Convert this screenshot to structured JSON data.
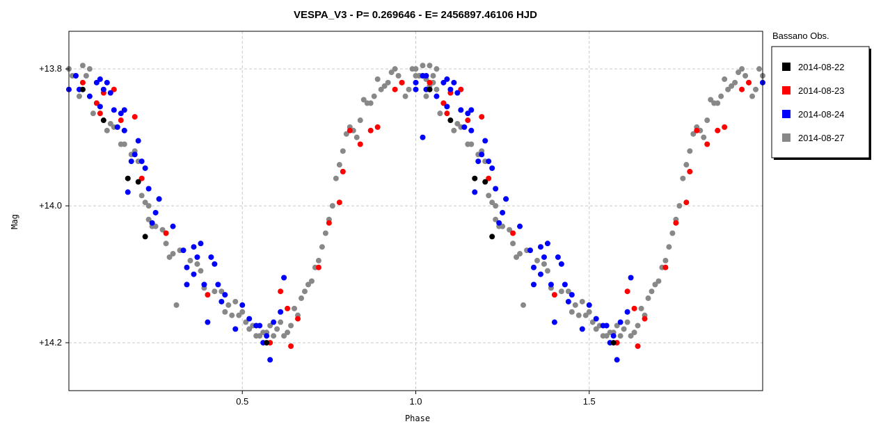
{
  "chart_data": {
    "type": "scatter",
    "title": "VESPA_V3  -  P= 0.269646  -  E= 2456897.46106 HJD",
    "xlabel": "Phase",
    "ylabel": "Mag",
    "xlim": [
      0.0,
      2.0
    ],
    "ylim": [
      14.27,
      13.745
    ],
    "y_inverted": true,
    "x_ticks": [
      0.5,
      1.0,
      1.5
    ],
    "x_tick_labels": [
      "0.5",
      "1.0",
      "1.5"
    ],
    "y_ticks": [
      13.8,
      14.0,
      14.2
    ],
    "y_tick_labels": [
      "+13.8",
      "+14.0",
      "+14.2"
    ],
    "grid": true,
    "legend_title": "Bassano Obs.",
    "legend_position": "right",
    "series": [
      {
        "name": "2014-08-22",
        "color": "#000000",
        "points": [
          [
            0.04,
            13.83
          ],
          [
            0.1,
            13.875
          ],
          [
            0.17,
            13.96
          ],
          [
            0.2,
            13.965
          ],
          [
            0.22,
            14.045
          ],
          [
            0.57,
            14.2
          ]
        ]
      },
      {
        "name": "2014-08-23",
        "color": "#ff0000",
        "points": [
          [
            0.04,
            13.82
          ],
          [
            0.08,
            13.85
          ],
          [
            0.09,
            13.865
          ],
          [
            0.1,
            13.835
          ],
          [
            0.13,
            13.83
          ],
          [
            0.15,
            13.875
          ],
          [
            0.19,
            13.87
          ],
          [
            0.21,
            13.96
          ],
          [
            0.28,
            14.04
          ],
          [
            0.4,
            14.13
          ],
          [
            0.58,
            14.2
          ],
          [
            0.61,
            14.125
          ],
          [
            0.63,
            14.15
          ],
          [
            0.64,
            14.205
          ],
          [
            0.66,
            14.165
          ],
          [
            0.72,
            14.09
          ],
          [
            0.75,
            14.025
          ],
          [
            0.78,
            13.995
          ],
          [
            0.79,
            13.95
          ],
          [
            0.81,
            13.89
          ],
          [
            0.84,
            13.91
          ],
          [
            0.87,
            13.89
          ],
          [
            0.89,
            13.885
          ],
          [
            0.94,
            13.83
          ],
          [
            0.96,
            13.82
          ]
        ]
      },
      {
        "name": "2014-08-24",
        "color": "#0000ff",
        "points": [
          [
            0.0,
            13.83
          ],
          [
            0.02,
            13.81
          ],
          [
            0.03,
            13.83
          ],
          [
            0.06,
            13.84
          ],
          [
            0.08,
            13.82
          ],
          [
            0.09,
            13.815
          ],
          [
            0.09,
            13.855
          ],
          [
            0.1,
            13.83
          ],
          [
            0.11,
            13.82
          ],
          [
            0.12,
            13.835
          ],
          [
            0.13,
            13.86
          ],
          [
            0.14,
            13.885
          ],
          [
            0.15,
            13.865
          ],
          [
            0.16,
            13.86
          ],
          [
            0.16,
            13.89
          ],
          [
            0.17,
            13.98
          ],
          [
            0.18,
            13.935
          ],
          [
            0.19,
            13.925
          ],
          [
            0.2,
            13.905
          ],
          [
            0.21,
            13.935
          ],
          [
            0.22,
            13.945
          ],
          [
            0.23,
            13.975
          ],
          [
            0.24,
            14.025
          ],
          [
            0.25,
            14.01
          ],
          [
            0.26,
            13.99
          ],
          [
            0.3,
            14.03
          ],
          [
            0.33,
            14.065
          ],
          [
            0.34,
            14.09
          ],
          [
            0.34,
            14.115
          ],
          [
            0.36,
            14.1
          ],
          [
            0.36,
            14.06
          ],
          [
            0.37,
            14.075
          ],
          [
            0.38,
            14.055
          ],
          [
            0.39,
            14.115
          ],
          [
            0.4,
            14.17
          ],
          [
            0.41,
            14.075
          ],
          [
            0.42,
            14.085
          ],
          [
            0.43,
            14.115
          ],
          [
            0.44,
            14.14
          ],
          [
            0.45,
            14.13
          ],
          [
            0.48,
            14.18
          ],
          [
            0.5,
            14.145
          ],
          [
            0.52,
            14.165
          ],
          [
            0.54,
            14.175
          ],
          [
            0.55,
            14.175
          ],
          [
            0.56,
            14.2
          ],
          [
            0.57,
            14.19
          ],
          [
            0.58,
            14.225
          ],
          [
            0.59,
            14.17
          ],
          [
            0.61,
            14.155
          ],
          [
            0.62,
            14.105
          ],
          [
            1.0,
            13.82
          ],
          [
            1.02,
            13.9
          ],
          [
            1.03,
            13.81
          ],
          [
            1.04,
            13.83
          ]
        ]
      },
      {
        "name": "2014-08-27",
        "color": "#888888",
        "points": [
          [
            0.0,
            13.8
          ],
          [
            0.01,
            13.81
          ],
          [
            0.02,
            13.81
          ],
          [
            0.03,
            13.84
          ],
          [
            0.04,
            13.795
          ],
          [
            0.05,
            13.81
          ],
          [
            0.06,
            13.8
          ],
          [
            0.07,
            13.865
          ],
          [
            0.08,
            13.85
          ],
          [
            0.11,
            13.89
          ],
          [
            0.12,
            13.88
          ],
          [
            0.13,
            13.885
          ],
          [
            0.15,
            13.91
          ],
          [
            0.16,
            13.91
          ],
          [
            0.18,
            13.925
          ],
          [
            0.19,
            13.92
          ],
          [
            0.2,
            13.935
          ],
          [
            0.21,
            13.985
          ],
          [
            0.22,
            13.995
          ],
          [
            0.23,
            14.0
          ],
          [
            0.23,
            14.02
          ],
          [
            0.24,
            14.03
          ],
          [
            0.25,
            14.03
          ],
          [
            0.26,
            13.99
          ],
          [
            0.27,
            14.035
          ],
          [
            0.28,
            14.055
          ],
          [
            0.29,
            14.075
          ],
          [
            0.3,
            14.07
          ],
          [
            0.31,
            14.145
          ],
          [
            0.32,
            14.065
          ],
          [
            0.35,
            14.08
          ],
          [
            0.37,
            14.085
          ],
          [
            0.38,
            14.095
          ],
          [
            0.39,
            14.12
          ],
          [
            0.42,
            14.125
          ],
          [
            0.44,
            14.125
          ],
          [
            0.45,
            14.155
          ],
          [
            0.46,
            14.145
          ],
          [
            0.47,
            14.16
          ],
          [
            0.48,
            14.14
          ],
          [
            0.49,
            14.16
          ],
          [
            0.5,
            14.155
          ],
          [
            0.51,
            14.17
          ],
          [
            0.52,
            14.18
          ],
          [
            0.53,
            14.175
          ],
          [
            0.54,
            14.19
          ],
          [
            0.55,
            14.19
          ],
          [
            0.56,
            14.185
          ],
          [
            0.57,
            14.185
          ],
          [
            0.58,
            14.175
          ],
          [
            0.59,
            14.19
          ],
          [
            0.6,
            14.18
          ],
          [
            0.61,
            14.17
          ],
          [
            0.62,
            14.19
          ],
          [
            0.63,
            14.185
          ],
          [
            0.64,
            14.175
          ],
          [
            0.65,
            14.15
          ],
          [
            0.66,
            14.16
          ],
          [
            0.67,
            14.135
          ],
          [
            0.68,
            14.125
          ],
          [
            0.69,
            14.115
          ],
          [
            0.7,
            14.11
          ],
          [
            0.71,
            14.09
          ],
          [
            0.72,
            14.08
          ],
          [
            0.73,
            14.06
          ],
          [
            0.74,
            14.04
          ],
          [
            0.75,
            14.02
          ],
          [
            0.76,
            14.0
          ],
          [
            0.77,
            13.96
          ],
          [
            0.78,
            13.94
          ],
          [
            0.79,
            13.92
          ],
          [
            0.8,
            13.895
          ],
          [
            0.81,
            13.885
          ],
          [
            0.82,
            13.89
          ],
          [
            0.83,
            13.9
          ],
          [
            0.84,
            13.875
          ],
          [
            0.85,
            13.845
          ],
          [
            0.86,
            13.85
          ],
          [
            0.87,
            13.85
          ],
          [
            0.88,
            13.84
          ],
          [
            0.89,
            13.815
          ],
          [
            0.9,
            13.83
          ],
          [
            0.91,
            13.825
          ],
          [
            0.92,
            13.82
          ],
          [
            0.93,
            13.805
          ],
          [
            0.94,
            13.8
          ],
          [
            0.95,
            13.81
          ],
          [
            0.96,
            13.82
          ],
          [
            0.97,
            13.84
          ],
          [
            0.98,
            13.83
          ],
          [
            0.99,
            13.8
          ],
          [
            1.0,
            13.81
          ],
          [
            1.01,
            13.81
          ],
          [
            1.02,
            13.795
          ],
          [
            1.03,
            13.815
          ],
          [
            1.04,
            13.825
          ],
          [
            1.05,
            13.82
          ],
          [
            1.06,
            13.83
          ]
        ]
      }
    ]
  }
}
